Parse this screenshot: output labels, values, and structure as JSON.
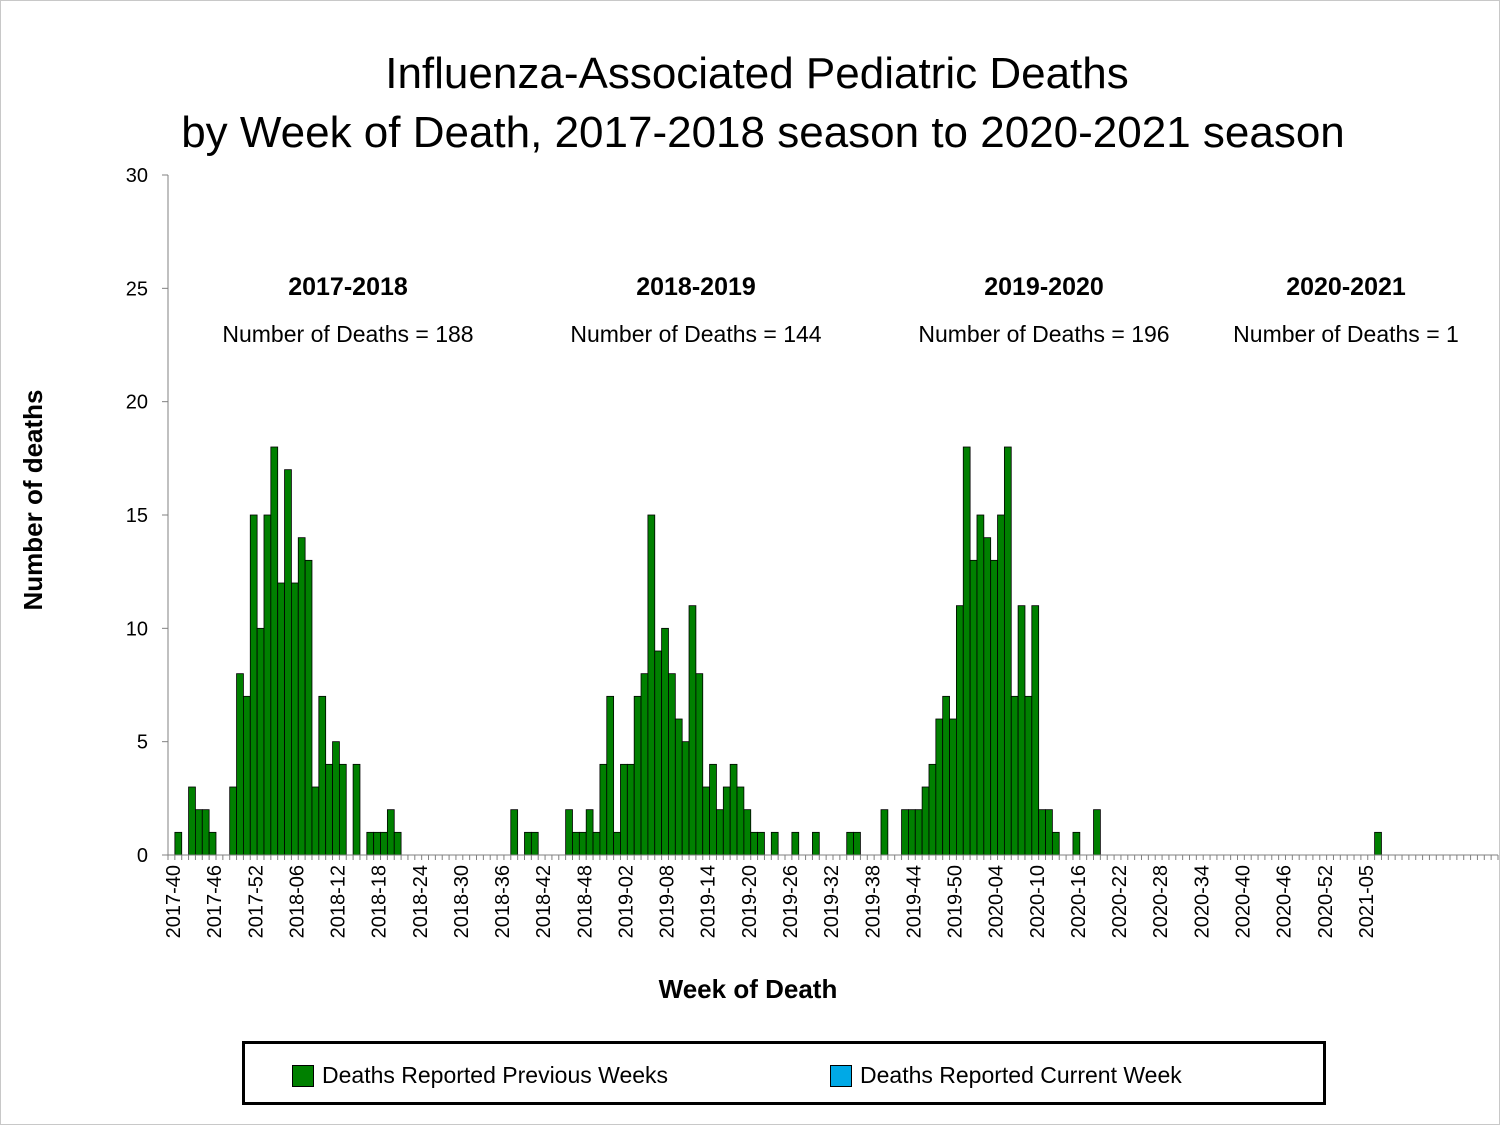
{
  "title_lines": [
    "Influenza-Associated Pediatric Deaths",
    "by Week of Death, 2017-2018 season to 2020-2021 season"
  ],
  "colors": {
    "previous": "#008000",
    "current": "#00a9e6",
    "bar_stroke": "#000000",
    "axis": "#808080"
  },
  "seasons": [
    {
      "name": "2017-2018",
      "deaths_label": "Number of Deaths = 188"
    },
    {
      "name": "2018-2019",
      "deaths_label": "Number of Deaths = 144"
    },
    {
      "name": "2019-2020",
      "deaths_label": "Number of Deaths = 196"
    },
    {
      "name": "2020-2021",
      "deaths_label": "Number of Deaths = 1"
    }
  ],
  "legend": [
    {
      "label": "Deaths Reported Previous Weeks",
      "color": "#008000"
    },
    {
      "label": "Deaths Reported Current Week",
      "color": "#00a9e6"
    }
  ],
  "chart_data": {
    "type": "bar",
    "title": "Influenza-Associated Pediatric Deaths by Week of Death, 2017-2018 season to 2020-2021 season",
    "xlabel": "Week of Death",
    "ylabel": "Number of deaths",
    "ylim": [
      0,
      30
    ],
    "yticks": [
      0,
      5,
      10,
      15,
      20,
      25,
      30
    ],
    "grid": false,
    "legend_position": "bottom",
    "start_week": "2017-40",
    "x_tick_labels": [
      "2017-40",
      "2017-46",
      "2017-52",
      "2018-06",
      "2018-12",
      "2018-18",
      "2018-24",
      "2018-30",
      "2018-36",
      "2018-42",
      "2018-48",
      "2019-02",
      "2019-08",
      "2019-14",
      "2019-20",
      "2019-26",
      "2019-32",
      "2019-38",
      "2019-44",
      "2019-50",
      "2020-04",
      "2020-10",
      "2020-16",
      "2020-22",
      "2020-28",
      "2020-34",
      "2020-40",
      "2020-46",
      "2020-52",
      "2021-05"
    ],
    "series": [
      {
        "name": "Deaths Reported Previous Weeks",
        "values": [
          0,
          1,
          0,
          3,
          2,
          2,
          1,
          0,
          0,
          3,
          8,
          7,
          15,
          10,
          15,
          18,
          12,
          17,
          12,
          14,
          13,
          3,
          7,
          4,
          5,
          4,
          0,
          4,
          0,
          1,
          1,
          1,
          2,
          1,
          0,
          0,
          0,
          0,
          0,
          0,
          0,
          0,
          0,
          0,
          0,
          0,
          0,
          0,
          0,
          0,
          2,
          0,
          1,
          1,
          0,
          0,
          0,
          0,
          2,
          1,
          1,
          2,
          1,
          4,
          7,
          1,
          4,
          4,
          7,
          8,
          15,
          9,
          10,
          8,
          6,
          5,
          11,
          8,
          3,
          4,
          2,
          3,
          4,
          3,
          2,
          1,
          1,
          0,
          1,
          0,
          0,
          1,
          0,
          0,
          1,
          0,
          0,
          0,
          0,
          1,
          1,
          0,
          0,
          0,
          2,
          0,
          0,
          2,
          2,
          2,
          3,
          4,
          6,
          7,
          6,
          11,
          18,
          13,
          15,
          14,
          13,
          15,
          18,
          7,
          11,
          7,
          11,
          2,
          2,
          1,
          0,
          0,
          1,
          0,
          0,
          2,
          0,
          0,
          0,
          0,
          0,
          0,
          0,
          0,
          0,
          0,
          0,
          0,
          0,
          0,
          0,
          0,
          0,
          0,
          0,
          0,
          0,
          0,
          0,
          0,
          0,
          0,
          0,
          0,
          0,
          0,
          0,
          0,
          0,
          0,
          0,
          0,
          0,
          0,
          0,
          0,
          1,
          0,
          0,
          0,
          0,
          0,
          0,
          0,
          0,
          0,
          0,
          0,
          0,
          0,
          0,
          0,
          0,
          0
        ]
      },
      {
        "name": "Deaths Reported Current Week",
        "values": []
      }
    ]
  }
}
